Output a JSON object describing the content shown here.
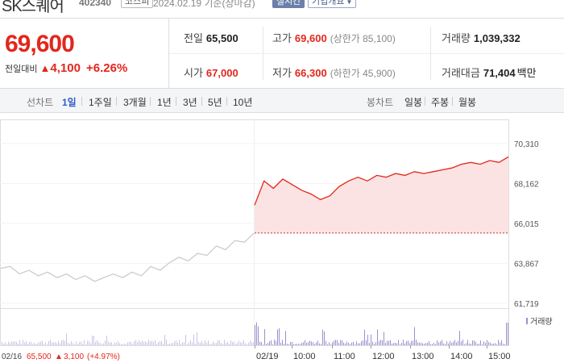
{
  "header": {
    "name": "SK스퀘어",
    "code": "402340",
    "market": "코스피",
    "date": "2024.02.19 기준(장마감)",
    "realtime_label": "실시간",
    "info_label": "기업개요"
  },
  "summary": {
    "price": "69,600",
    "change_label": "전일대비",
    "change_arrow": "▲",
    "change": "4,100",
    "change_pct": "+6.26%",
    "prev_close_label": "전일",
    "prev_close": "65,500",
    "high_label": "고가",
    "high": "69,600",
    "upper_limit": "(상한가 85,100)",
    "volume_label": "거래량",
    "volume": "1,039,332",
    "open_label": "시가",
    "open": "67,000",
    "low_label": "저가",
    "low": "66,300",
    "lower_limit": "(하한가 45,900)",
    "amount_label": "거래대금",
    "amount": "71,404",
    "amount_unit": "백만"
  },
  "period_bar": {
    "line_label": "선차트",
    "line_items": [
      "1일",
      "1주일",
      "3개월",
      "1년",
      "3년",
      "5년",
      "10년"
    ],
    "selected": "1일",
    "candle_label": "봉차트",
    "candle_items": [
      "일봉",
      "주봉",
      "월봉"
    ]
  },
  "chart_data": {
    "type": "line",
    "y_ticks": [
      "70,310",
      "68,162",
      "66,015",
      "63,867",
      "61,719"
    ],
    "ylim": [
      61719,
      70310
    ],
    "x_ticks": [
      "02/19",
      "10:00",
      "11:00",
      "12:00",
      "13:00",
      "14:00",
      "15:00"
    ],
    "volume_legend": "거래량",
    "prev_day_label": "02/16",
    "prev_day_close": "65,500",
    "prev_day_arrow": "▲",
    "prev_day_change": "3,100",
    "prev_day_pct": "(+4.97%)",
    "reference_price": 65500,
    "series": [
      {
        "values": [
          63600,
          63700,
          63300,
          63500,
          63200,
          63400,
          63100,
          63300,
          63000,
          63200,
          62900,
          63100,
          63300,
          63100,
          63400,
          63200,
          63700,
          63500,
          63900,
          64200,
          64000,
          64400,
          64300,
          64800,
          64600,
          65100,
          65000,
          65500
        ]
      },
      {
        "values": [
          67000,
          68300,
          67900,
          68400,
          68100,
          67800,
          67600,
          67300,
          67500,
          68000,
          68300,
          68500,
          68300,
          68600,
          68500,
          68700,
          68600,
          68800,
          68700,
          68800,
          68900,
          69000,
          69200,
          69300,
          69200,
          69400,
          69300,
          69600
        ]
      }
    ],
    "colors": {
      "prev_line": "#c8c8c8",
      "line": "#e3261c",
      "fill": "#fbe3e3",
      "volume": "#9b8fd0"
    }
  }
}
